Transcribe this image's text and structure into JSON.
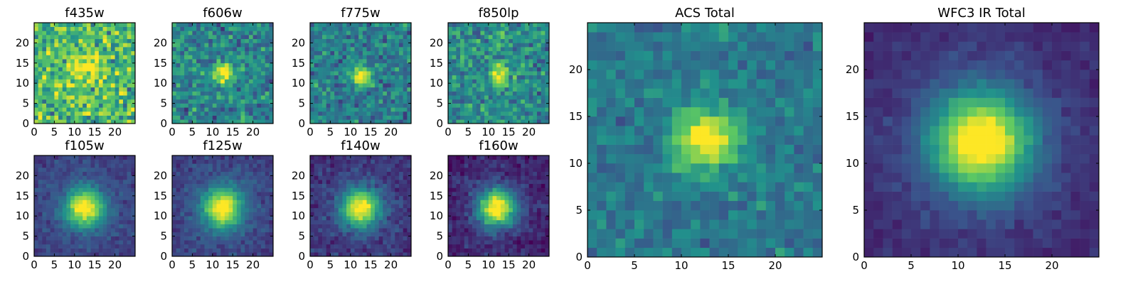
{
  "figure": {
    "colormap": [
      "#440154",
      "#3b528b",
      "#21918c",
      "#5ec962",
      "#fde725"
    ]
  },
  "chart_data": [
    {
      "type": "heatmap",
      "title": "f435w",
      "xticks": [
        0,
        5,
        10,
        15,
        20
      ],
      "yticks": [
        0,
        5,
        10,
        15,
        20
      ],
      "xlim": [
        0,
        25
      ],
      "ylim": [
        0,
        25
      ],
      "grid": false,
      "source_center": [
        12,
        12.5
      ],
      "peak": 0.85,
      "width": 2.6,
      "background": 0.68,
      "noise": 0.22
    },
    {
      "type": "heatmap",
      "title": "f606w",
      "xticks": [
        0,
        5,
        10,
        15,
        20
      ],
      "yticks": [
        0,
        5,
        10,
        15,
        20
      ],
      "xlim": [
        0,
        25
      ],
      "ylim": [
        0,
        25
      ],
      "grid": false,
      "source_center": [
        12,
        12
      ],
      "peak": 0.88,
      "width": 1.8,
      "background": 0.45,
      "noise": 0.16
    },
    {
      "type": "heatmap",
      "title": "f775w",
      "xticks": [
        0,
        5,
        10,
        15,
        20
      ],
      "yticks": [
        0,
        5,
        10,
        15,
        20
      ],
      "xlim": [
        0,
        25
      ],
      "ylim": [
        0,
        25
      ],
      "grid": false,
      "source_center": [
        12,
        11.5
      ],
      "peak": 0.9,
      "width": 1.6,
      "background": 0.42,
      "noise": 0.15
    },
    {
      "type": "heatmap",
      "title": "f850lp",
      "xticks": [
        0,
        5,
        10,
        15,
        20
      ],
      "yticks": [
        0,
        5,
        10,
        15,
        20
      ],
      "xlim": [
        0,
        25
      ],
      "ylim": [
        0,
        25
      ],
      "grid": false,
      "source_center": [
        12,
        12
      ],
      "peak": 0.85,
      "width": 1.8,
      "background": 0.48,
      "noise": 0.17
    },
    {
      "type": "heatmap",
      "title": "f105w",
      "xticks": [
        0,
        5,
        10,
        15,
        20
      ],
      "yticks": [
        0,
        5,
        10,
        15,
        20
      ],
      "xlim": [
        0,
        25
      ],
      "ylim": [
        0,
        25
      ],
      "grid": false,
      "source_center": [
        12,
        11.5
      ],
      "peak": 0.93,
      "width": 3.2,
      "background": 0.3,
      "noise": 0.06
    },
    {
      "type": "heatmap",
      "title": "f125w",
      "xticks": [
        0,
        5,
        10,
        15,
        20
      ],
      "yticks": [
        0,
        5,
        10,
        15,
        20
      ],
      "xlim": [
        0,
        25
      ],
      "ylim": [
        0,
        25
      ],
      "grid": false,
      "source_center": [
        12,
        11.5
      ],
      "peak": 0.93,
      "width": 3.3,
      "background": 0.3,
      "noise": 0.06
    },
    {
      "type": "heatmap",
      "title": "f140w",
      "xticks": [
        0,
        5,
        10,
        15,
        20
      ],
      "yticks": [
        0,
        5,
        10,
        15,
        20
      ],
      "xlim": [
        0,
        25
      ],
      "ylim": [
        0,
        25
      ],
      "grid": false,
      "source_center": [
        12,
        11.5
      ],
      "peak": 0.93,
      "width": 3.1,
      "background": 0.26,
      "noise": 0.07
    },
    {
      "type": "heatmap",
      "title": "f160w",
      "xticks": [
        0,
        5,
        10,
        15,
        20
      ],
      "yticks": [
        0,
        5,
        10,
        15,
        20
      ],
      "xlim": [
        0,
        25
      ],
      "ylim": [
        0,
        25
      ],
      "grid": false,
      "source_center": [
        11.5,
        11.5
      ],
      "peak": 0.93,
      "width": 3.2,
      "background": 0.2,
      "noise": 0.07
    },
    {
      "type": "heatmap",
      "title": "ACS Total",
      "xticks": [
        0,
        5,
        10,
        15,
        20
      ],
      "yticks": [
        0,
        5,
        10,
        15,
        20
      ],
      "xlim": [
        0,
        25
      ],
      "ylim": [
        0,
        25
      ],
      "grid": false,
      "source_center": [
        12,
        12
      ],
      "peak": 0.95,
      "width": 2.2,
      "background": 0.4,
      "noise": 0.1
    },
    {
      "type": "heatmap",
      "title": "WFC3 IR Total",
      "xticks": [
        0,
        5,
        10,
        15,
        20
      ],
      "yticks": [
        0,
        5,
        10,
        15,
        20
      ],
      "xlim": [
        0,
        25
      ],
      "ylim": [
        0,
        25
      ],
      "grid": false,
      "source_center": [
        12,
        11.8
      ],
      "peak": 0.98,
      "width": 3.6,
      "background": 0.24,
      "noise": 0.04
    }
  ]
}
